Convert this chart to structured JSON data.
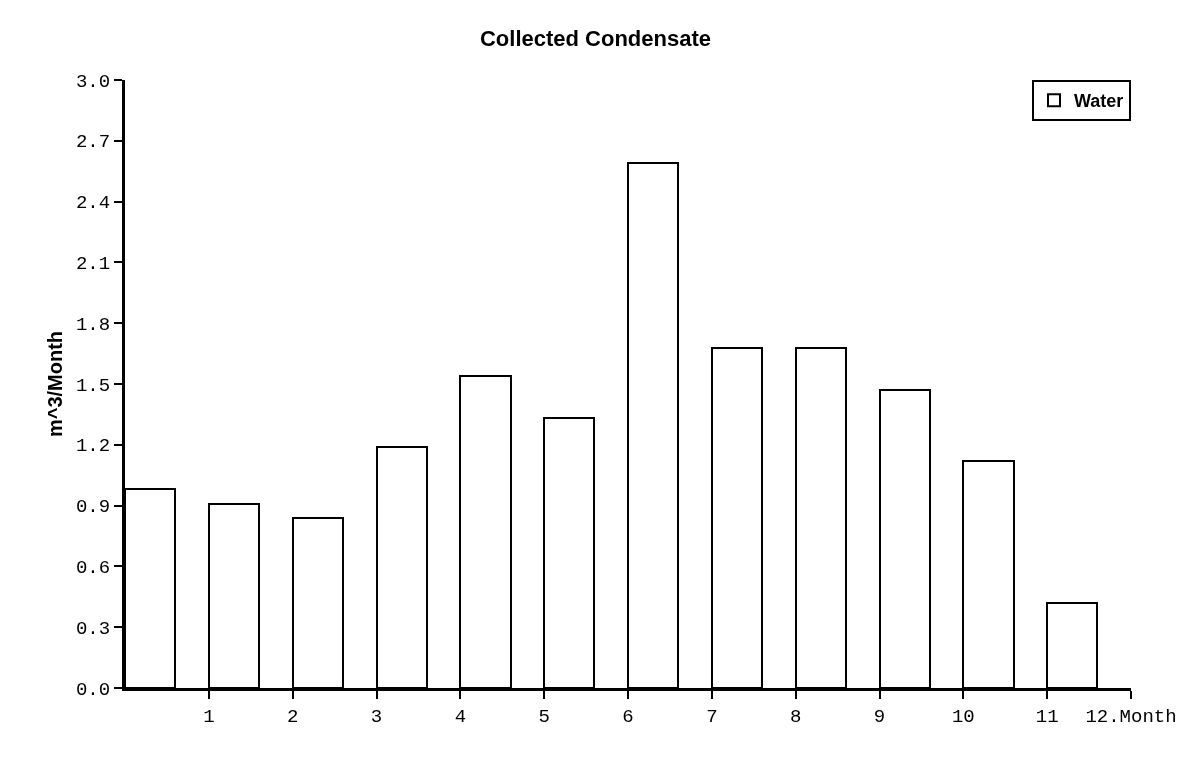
{
  "chart_data": {
    "type": "bar",
    "title": "Collected Condensate",
    "ylabel": "m^3/Month",
    "x": [
      0.3,
      1.3,
      2.3,
      3.3,
      4.3,
      5.3,
      6.3,
      7.3,
      8.3,
      9.3,
      10.3,
      11.3
    ],
    "series": [
      {
        "name": "Water",
        "color": "#ffffff",
        "values": [
          0.98,
          0.91,
          0.84,
          1.19,
          1.54,
          1.33,
          2.59,
          1.68,
          1.68,
          1.47,
          1.12,
          0.42
        ]
      }
    ],
    "xlim": [
      0,
      12
    ],
    "xticks": [
      1,
      2,
      3,
      4,
      5,
      6,
      7,
      8,
      9,
      10,
      11,
      {
        "value": 12,
        "label": "12.Month"
      }
    ],
    "ylim": [
      0,
      3
    ],
    "yticks": [
      {
        "value": 0,
        "label": "0.0"
      },
      0.3,
      0.6,
      0.9,
      1.2,
      1.5,
      1.8,
      2.1,
      2.4,
      2.7,
      {
        "value": 3,
        "label": "3.0"
      }
    ],
    "grid": false,
    "legend": "top right"
  }
}
